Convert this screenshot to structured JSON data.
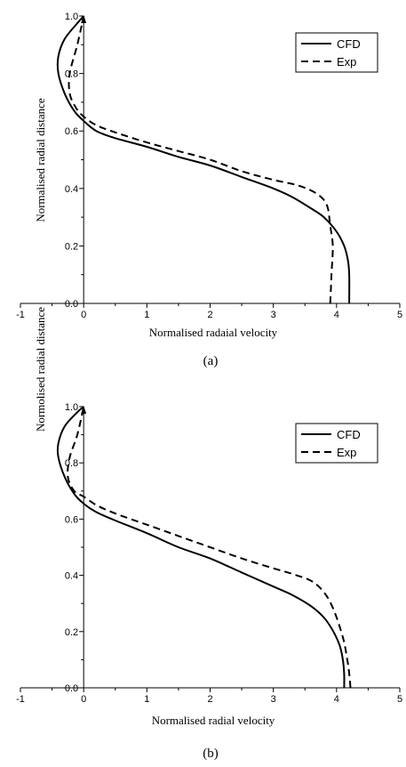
{
  "colors": {
    "line": "#000000",
    "background": "#ffffff"
  },
  "chart_data": [
    {
      "type": "line",
      "caption": "(a)",
      "xlabel": "Normalised radaial velocity",
      "ylabel": "Normalised radial distance",
      "xlim": [
        -1,
        5
      ],
      "ylim": [
        0,
        1
      ],
      "x_ticks": [
        "-1",
        "0",
        "1",
        "2",
        "3",
        "4",
        "5"
      ],
      "y_ticks": [
        "0.0",
        "0.2",
        "0.4",
        "0.6",
        "0.8",
        "1.0"
      ],
      "grid": false,
      "legend_position": "top-right",
      "series": [
        {
          "name": "CFD",
          "style": "solid",
          "points": [
            [
              4.2,
              0.0
            ],
            [
              4.2,
              0.1
            ],
            [
              4.18,
              0.15
            ],
            [
              4.12,
              0.2
            ],
            [
              4.0,
              0.25
            ],
            [
              3.8,
              0.3
            ],
            [
              3.6,
              0.33
            ],
            [
              3.3,
              0.37
            ],
            [
              3.0,
              0.4
            ],
            [
              2.5,
              0.44
            ],
            [
              2.0,
              0.48
            ],
            [
              1.5,
              0.51
            ],
            [
              1.0,
              0.545
            ],
            [
              0.5,
              0.575
            ],
            [
              0.2,
              0.6
            ],
            [
              0.0,
              0.635
            ],
            [
              -0.15,
              0.67
            ],
            [
              -0.3,
              0.73
            ],
            [
              -0.4,
              0.8
            ],
            [
              -0.4,
              0.86
            ],
            [
              -0.3,
              0.92
            ],
            [
              -0.1,
              0.975
            ],
            [
              0.0,
              1.0
            ]
          ]
        },
        {
          "name": "Exp",
          "style": "dashed",
          "points": [
            [
              3.9,
              0.0
            ],
            [
              3.92,
              0.1
            ],
            [
              3.94,
              0.2
            ],
            [
              3.9,
              0.27
            ],
            [
              3.85,
              0.34
            ],
            [
              3.7,
              0.38
            ],
            [
              3.4,
              0.41
            ],
            [
              3.0,
              0.43
            ],
            [
              2.5,
              0.46
            ],
            [
              2.0,
              0.5
            ],
            [
              1.5,
              0.53
            ],
            [
              1.0,
              0.56
            ],
            [
              0.5,
              0.595
            ],
            [
              0.2,
              0.62
            ],
            [
              0.0,
              0.65
            ],
            [
              -0.12,
              0.68
            ],
            [
              -0.22,
              0.73
            ],
            [
              -0.22,
              0.8
            ],
            [
              -0.1,
              0.9
            ],
            [
              0.0,
              1.0
            ]
          ]
        }
      ]
    },
    {
      "type": "line",
      "caption": "(b)",
      "xlabel": "Normalised radial velocity",
      "ylabel": "Normolised radial distance",
      "xlim": [
        -1,
        5
      ],
      "ylim": [
        0,
        1
      ],
      "x_ticks": [
        "-1",
        "0",
        "1",
        "2",
        "3",
        "4",
        "5"
      ],
      "y_ticks": [
        "0.0",
        "0.2",
        "0.4",
        "0.6",
        "0.8",
        "1.0"
      ],
      "grid": false,
      "legend_position": "top-right",
      "series": [
        {
          "name": "CFD",
          "style": "solid",
          "points": [
            [
              4.12,
              0.0
            ],
            [
              4.12,
              0.05
            ],
            [
              4.1,
              0.1
            ],
            [
              4.05,
              0.15
            ],
            [
              3.95,
              0.2
            ],
            [
              3.8,
              0.25
            ],
            [
              3.6,
              0.29
            ],
            [
              3.3,
              0.33
            ],
            [
              3.0,
              0.36
            ],
            [
              2.5,
              0.41
            ],
            [
              2.0,
              0.46
            ],
            [
              1.5,
              0.5
            ],
            [
              1.0,
              0.55
            ],
            [
              0.5,
              0.595
            ],
            [
              0.2,
              0.625
            ],
            [
              0.0,
              0.655
            ],
            [
              -0.15,
              0.69
            ],
            [
              -0.3,
              0.75
            ],
            [
              -0.4,
              0.82
            ],
            [
              -0.4,
              0.87
            ],
            [
              -0.3,
              0.93
            ],
            [
              -0.1,
              0.98
            ],
            [
              0.0,
              1.0
            ]
          ]
        },
        {
          "name": "Exp",
          "style": "dashed",
          "points": [
            [
              4.22,
              0.0
            ],
            [
              4.2,
              0.05
            ],
            [
              4.17,
              0.1
            ],
            [
              4.1,
              0.18
            ],
            [
              3.95,
              0.28
            ],
            [
              3.8,
              0.34
            ],
            [
              3.6,
              0.38
            ],
            [
              3.3,
              0.405
            ],
            [
              3.0,
              0.425
            ],
            [
              2.5,
              0.46
            ],
            [
              2.0,
              0.5
            ],
            [
              1.5,
              0.54
            ],
            [
              1.0,
              0.58
            ],
            [
              0.5,
              0.62
            ],
            [
              0.2,
              0.65
            ],
            [
              0.0,
              0.68
            ],
            [
              -0.15,
              0.7
            ],
            [
              -0.25,
              0.75
            ],
            [
              -0.22,
              0.82
            ],
            [
              -0.1,
              0.9
            ],
            [
              0.0,
              1.0
            ]
          ]
        }
      ]
    }
  ]
}
